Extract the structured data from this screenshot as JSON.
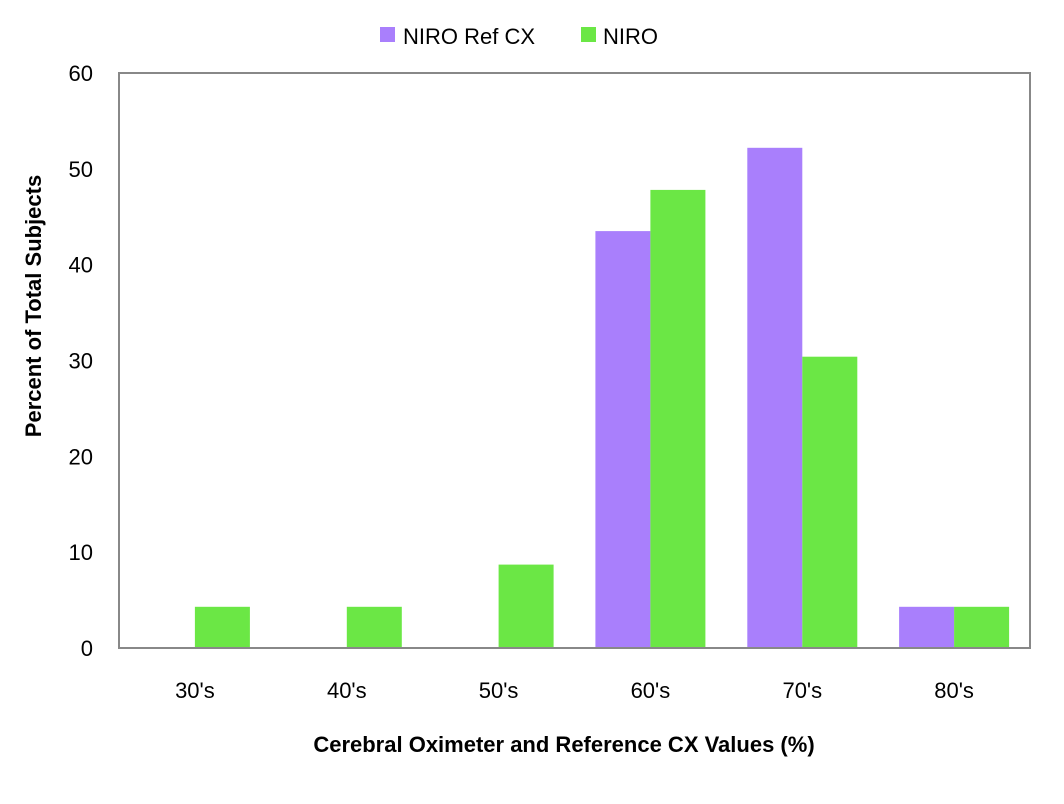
{
  "chart_data": {
    "type": "bar",
    "title": "",
    "xlabel": "Cerebral Oximeter and Reference CX Values (%)",
    "ylabel": "Percent of Total Subjects",
    "categories": [
      "30's",
      "40's",
      "50's",
      "60's",
      "70's",
      "80's"
    ],
    "series": [
      {
        "name": "NIRO Ref CX",
        "color": "#a97ffc",
        "values": [
          0,
          0,
          0,
          43.5,
          52.2,
          4.3
        ]
      },
      {
        "name": "NIRO",
        "color": "#6be745",
        "values": [
          4.3,
          4.3,
          8.7,
          47.8,
          30.4,
          4.3
        ]
      }
    ],
    "ylim": [
      0,
      60
    ],
    "yticks": [
      0,
      10,
      20,
      30,
      40,
      50,
      60
    ],
    "grid": false,
    "legend": "top-center",
    "frame_color": "#888888"
  }
}
